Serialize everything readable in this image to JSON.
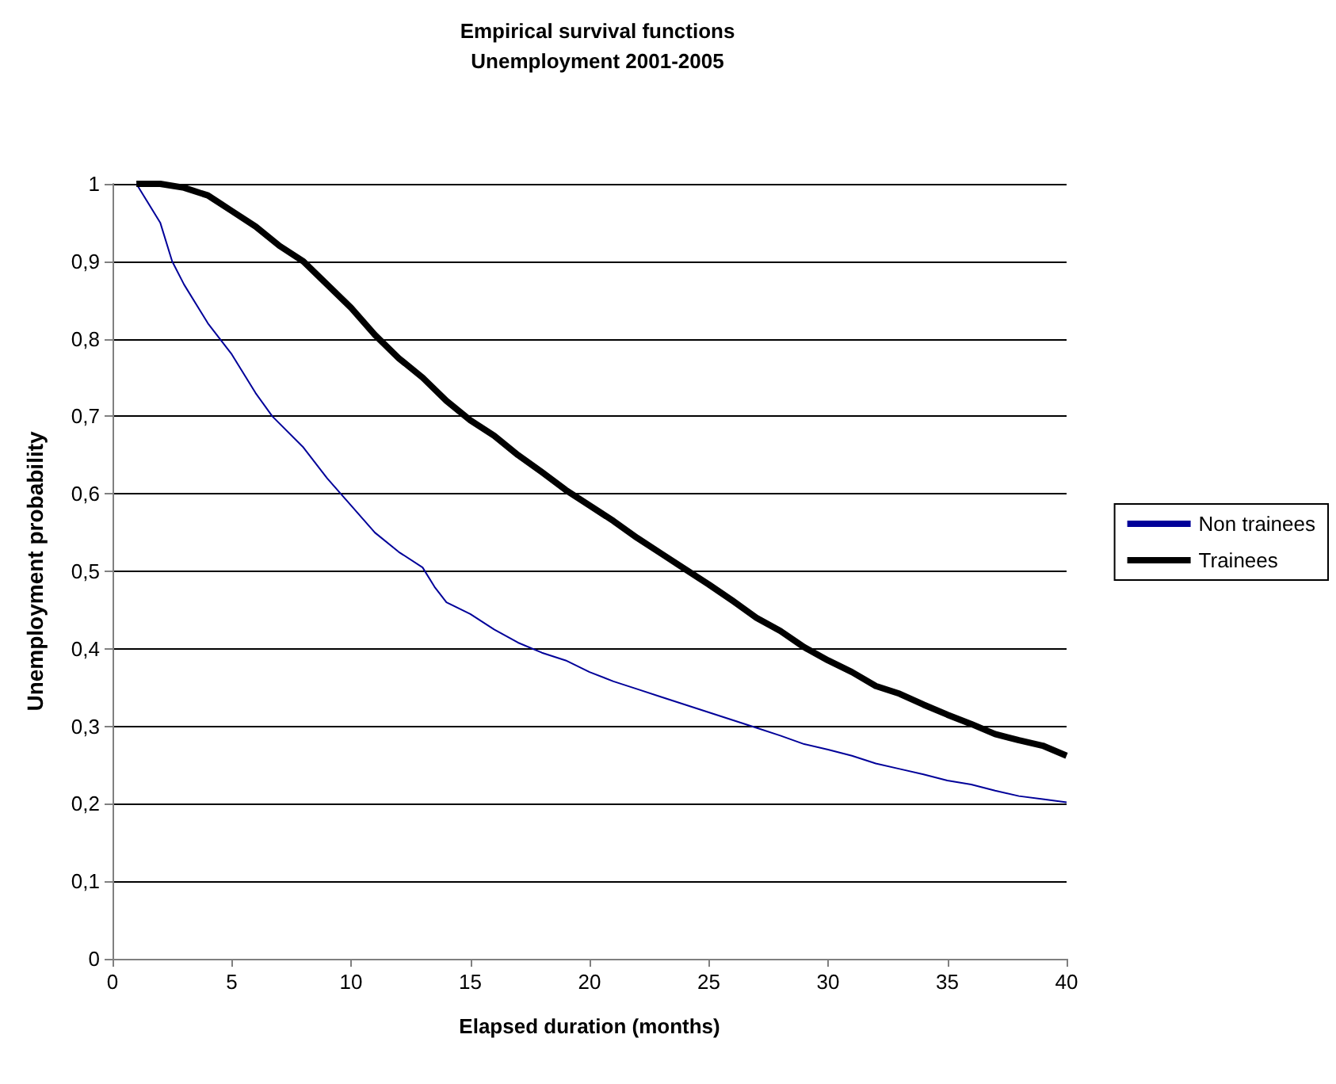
{
  "chart_data": {
    "type": "line",
    "title": "Empirical survival functions",
    "subtitle": "Unemployment 2001-2005",
    "xlabel": "Elapsed duration (months)",
    "ylabel": "Unemployment probability",
    "xlim": [
      0,
      40
    ],
    "xticks": [
      0,
      5,
      10,
      15,
      20,
      25,
      30,
      35,
      40
    ],
    "ylim": [
      0,
      1
    ],
    "yticks": [
      {
        "value": 0,
        "label": "0"
      },
      {
        "value": 0.1,
        "label": "0,1"
      },
      {
        "value": 0.2,
        "label": "0,2"
      },
      {
        "value": 0.3,
        "label": "0,3"
      },
      {
        "value": 0.4,
        "label": "0,4"
      },
      {
        "value": 0.5,
        "label": "0,5"
      },
      {
        "value": 0.6,
        "label": "0,6"
      },
      {
        "value": 0.7,
        "label": "0,7"
      },
      {
        "value": 0.8,
        "label": "0,8"
      },
      {
        "value": 0.9,
        "label": "0,9"
      },
      {
        "value": 1,
        "label": "1"
      }
    ],
    "grid": "y",
    "legend": "right",
    "marker": "none",
    "line_style": "solid",
    "series": [
      {
        "name": "Non trainees",
        "color": "#000099",
        "x": [
          1,
          2,
          2.5,
          3,
          4,
          5,
          6,
          6.7,
          8,
          9,
          10,
          11,
          12,
          13,
          13.5,
          14,
          15,
          16,
          17,
          18,
          19,
          20,
          21,
          22,
          23,
          24,
          25,
          26,
          27,
          28,
          29,
          30,
          31,
          32,
          33,
          34,
          35,
          36,
          37,
          38,
          39,
          40
        ],
        "values": [
          1,
          0.95,
          0.9,
          0.87,
          0.82,
          0.78,
          0.73,
          0.7,
          0.66,
          0.62,
          0.585,
          0.55,
          0.525,
          0.505,
          0.48,
          0.46,
          0.445,
          0.425,
          0.408,
          0.395,
          0.385,
          0.37,
          0.358,
          0.348,
          0.338,
          0.328,
          0.318,
          0.308,
          0.298,
          0.288,
          0.277,
          0.27,
          0.262,
          0.252,
          0.245,
          0.238,
          0.23,
          0.225,
          0.217,
          0.21,
          0.206,
          0.202
        ]
      },
      {
        "name": "Trainees",
        "color": "#000000",
        "x": [
          1,
          2,
          3,
          4,
          5,
          6,
          7,
          8,
          9,
          10,
          11,
          12,
          13,
          14,
          15,
          16,
          17,
          18,
          19,
          20,
          21,
          22,
          23,
          24,
          25,
          26,
          27,
          28,
          29,
          30,
          31,
          32,
          33,
          34,
          35,
          36,
          37,
          38,
          39,
          40
        ],
        "values": [
          1,
          1,
          0.995,
          0.985,
          0.965,
          0.945,
          0.92,
          0.9,
          0.87,
          0.84,
          0.805,
          0.775,
          0.75,
          0.72,
          0.695,
          0.675,
          0.65,
          0.628,
          0.605,
          0.585,
          0.565,
          0.543,
          0.523,
          0.503,
          0.483,
          0.462,
          0.44,
          0.423,
          0.402,
          0.385,
          0.37,
          0.352,
          0.342,
          0.328,
          0.315,
          0.303,
          0.29,
          0.282,
          0.275,
          0.262
        ]
      }
    ]
  }
}
